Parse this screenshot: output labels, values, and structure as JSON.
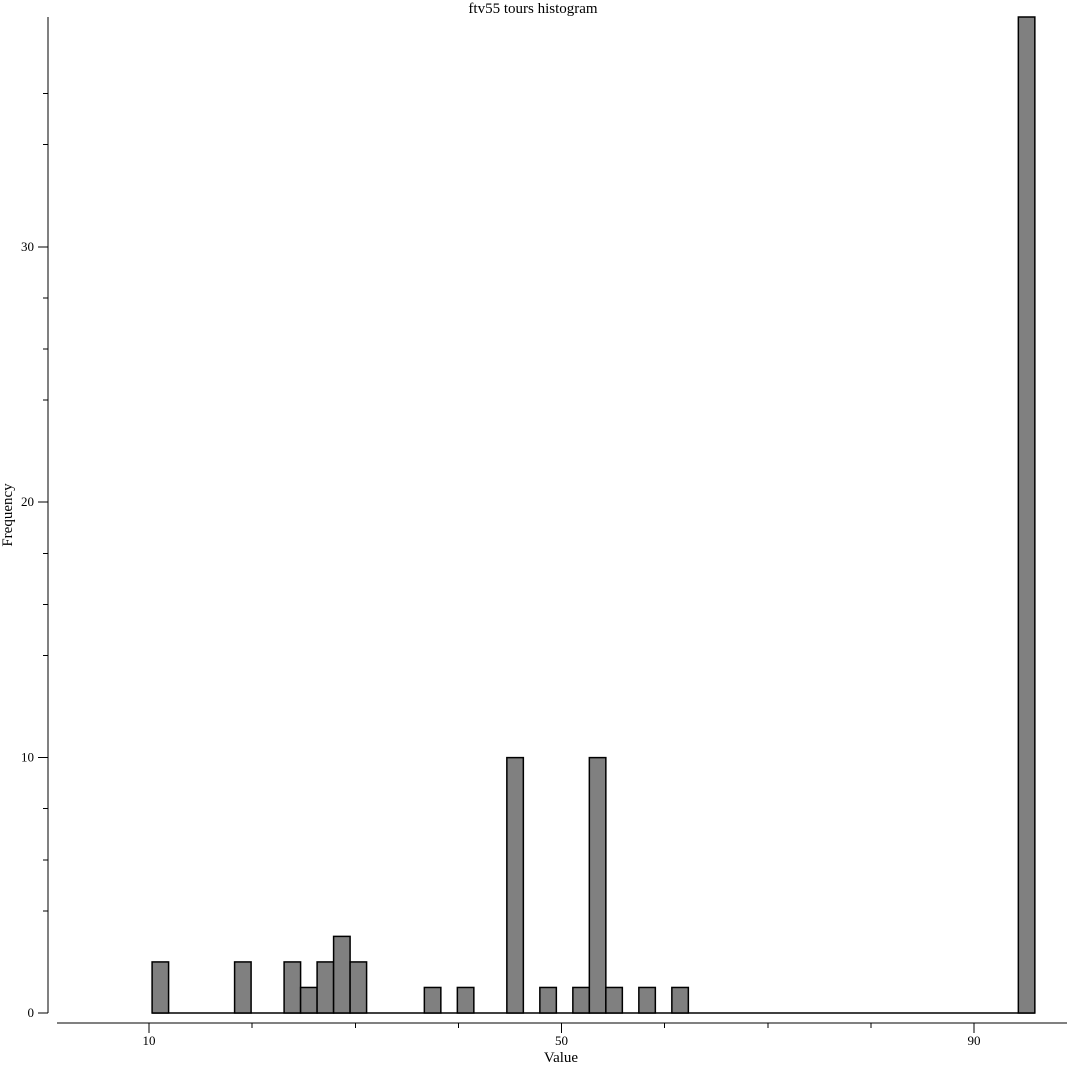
{
  "chart_data": {
    "type": "bar",
    "title": "ftv55 tours histogram",
    "xlabel": "Value",
    "ylabel": "Frequency",
    "xlim": [
      1,
      96
    ],
    "ylim": [
      0,
      39
    ],
    "x_ticks_major": [
      10,
      50,
      90
    ],
    "x_ticks_minor": [
      20,
      30,
      40,
      60,
      70,
      80
    ],
    "y_ticks_major": [
      0,
      10,
      20,
      30
    ],
    "y_ticks_minor": [
      4,
      6,
      8,
      14,
      16,
      18,
      24,
      26,
      28,
      34,
      36
    ],
    "bin_width": 1.6,
    "bins": [
      {
        "x": 11.1,
        "count": 2
      },
      {
        "x": 19.1,
        "count": 2
      },
      {
        "x": 23.9,
        "count": 2
      },
      {
        "x": 25.5,
        "count": 1
      },
      {
        "x": 27.1,
        "count": 2
      },
      {
        "x": 28.7,
        "count": 3
      },
      {
        "x": 30.3,
        "count": 2
      },
      {
        "x": 37.5,
        "count": 1
      },
      {
        "x": 40.7,
        "count": 1
      },
      {
        "x": 45.5,
        "count": 10
      },
      {
        "x": 48.7,
        "count": 1
      },
      {
        "x": 51.9,
        "count": 1
      },
      {
        "x": 53.5,
        "count": 10
      },
      {
        "x": 55.1,
        "count": 1
      },
      {
        "x": 58.3,
        "count": 1
      },
      {
        "x": 61.5,
        "count": 1
      },
      {
        "x": 95.1,
        "count": 39
      }
    ],
    "baseline_range": [
      10.3,
      95.9
    ],
    "bar_color": "#808080",
    "edge_color": "#000000",
    "grid": false,
    "legend": "none"
  }
}
